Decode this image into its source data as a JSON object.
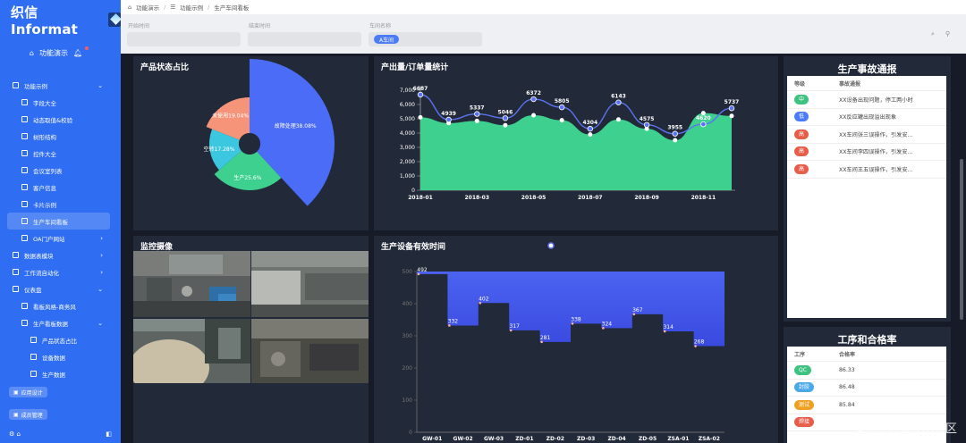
{
  "brand": {
    "name": "织信 Informat"
  },
  "home": {
    "label": "功能演示"
  },
  "sidebar": {
    "items": [
      {
        "label": "功能示例",
        "level": 1,
        "arrow": "⌄"
      },
      {
        "label": "字段大全",
        "level": 2
      },
      {
        "label": "动态取值&校验",
        "level": 2
      },
      {
        "label": "树形结构",
        "level": 2
      },
      {
        "label": "控件大全",
        "level": 2
      },
      {
        "label": "会议室列表",
        "level": 2
      },
      {
        "label": "客户信息",
        "level": 2
      },
      {
        "label": "卡片示例",
        "level": 2
      },
      {
        "label": "生产车间看板",
        "level": 2,
        "active": true
      },
      {
        "label": "OA门户网站",
        "level": 2,
        "arrow": "›"
      },
      {
        "label": "数据表模块",
        "level": 1,
        "arrow": "›"
      },
      {
        "label": "工作流自动化",
        "level": 1,
        "arrow": "›"
      },
      {
        "label": "仪表盘",
        "level": 1,
        "arrow": "⌄"
      },
      {
        "label": "看板风格-商务风",
        "level": 2
      },
      {
        "label": "生产看板数据",
        "level": 2,
        "arrow": "⌄"
      },
      {
        "label": "产品状态占比",
        "level": 3
      },
      {
        "label": "设备数据",
        "level": 3
      },
      {
        "label": "生产数据",
        "level": 3
      }
    ],
    "btn_design": "应用设计",
    "btn_members": "成员管理"
  },
  "breadcrumb": {
    "a": "功能演示",
    "b": "功能示例",
    "c": "生产车间看板"
  },
  "filters": {
    "start_label": "开始时间",
    "end_label": "结束时间",
    "workshop_label": "车间名称",
    "workshop_value": "A车间"
  },
  "panels": {
    "prod_title": "产品状态占比",
    "stats_title": "产出量/订单量统计",
    "cam_title": "监控摄像",
    "eff_title": "生产设备有效时间",
    "acc_title": "生产事故通报",
    "pass_title": "工序和合格率"
  },
  "accidents": {
    "headers": [
      "等级",
      "事故通报"
    ],
    "rows": [
      {
        "level": "中",
        "color": "#3ec27f",
        "text": "XX设备出现问题，停工两小时"
      },
      {
        "level": "低",
        "color": "#4b7bf5",
        "text": "XX反应罐出现溢出现象"
      },
      {
        "level": "高",
        "color": "#e85c4a",
        "text": "XX车间张三误操作，引发安..."
      },
      {
        "level": "高",
        "color": "#e85c4a",
        "text": "XX车间李四误操作，引发安..."
      },
      {
        "level": "高",
        "color": "#e85c4a",
        "text": "XX车间王五误操作，引发安..."
      }
    ]
  },
  "pass_rate": {
    "headers": [
      "工序",
      "合格率"
    ],
    "rows": [
      {
        "proc": "QC",
        "color": "#3ec27f",
        "rate": "86.33"
      },
      {
        "proc": "封胶",
        "color": "#4aa8e8",
        "rate": "86.48"
      },
      {
        "proc": "测试",
        "color": "#f0a020",
        "rate": "85.84"
      },
      {
        "proc": "焊接",
        "color": "#e85c4a",
        "rate": ""
      }
    ]
  },
  "watermark": "@稀土掘金技术社区",
  "chart_data": [
    {
      "type": "pie",
      "title": "产品状态占比",
      "labels": [
        "故障处理",
        "生产",
        "空转",
        "未使用"
      ],
      "values": [
        38.08,
        25.6,
        17.28,
        19.04
      ],
      "display": [
        "故障处理38.08%",
        "生产25.6%",
        "空转17.28%",
        "未使用19.04%"
      ],
      "colors": [
        "#4b6cf6",
        "#3ed08f",
        "#3cc7e0",
        "#f59479"
      ]
    },
    {
      "type": "area",
      "title": "产出量/订单量统计",
      "x": [
        "2018-01",
        "2018-02",
        "2018-03",
        "2018-04",
        "2018-05",
        "2018-06",
        "2018-07",
        "2018-08",
        "2018-09",
        "2018-10",
        "2018-11",
        "2018-12"
      ],
      "xticks": [
        "2018-01",
        "2018-03",
        "2018-05",
        "2018-07",
        "2018-09",
        "2018-11"
      ],
      "ylim": [
        0,
        7000
      ],
      "yticks": [
        0,
        1000,
        2000,
        3000,
        4000,
        5000,
        6000,
        7000
      ],
      "yticklabels": [
        "0",
        "1,000",
        "2,000",
        "3,000",
        "4,000",
        "5,000",
        "6,000",
        "7,000"
      ],
      "series": [
        {
          "type": "line",
          "color": "#5b73f0",
          "values": [
            6687,
            4939,
            5337,
            5046,
            6372,
            5805,
            4304,
            6143,
            4575,
            3955,
            4620,
            5737
          ],
          "labels": [
            "6687",
            "4939",
            "5337",
            "5046",
            "6372",
            "5805",
            "4304",
            "6143",
            "4575",
            "3955",
            "4620",
            "5737"
          ]
        },
        {
          "type": "area",
          "color": "#3ed08f",
          "values": [
            5100,
            4700,
            4850,
            4550,
            5250,
            4900,
            3900,
            4950,
            4300,
            3500,
            5400,
            5200
          ]
        }
      ]
    },
    {
      "type": "line",
      "title": "生产设备有效时间",
      "step": true,
      "categories": [
        "GW-01",
        "GW-02",
        "GW-03",
        "ZD-01",
        "ZD-02",
        "ZD-03",
        "ZD-04",
        "ZD-05",
        "ZSA-01",
        "ZSA-02"
      ],
      "values": [
        492,
        332,
        402,
        317,
        281,
        338,
        324,
        367,
        314,
        268
      ],
      "ylim": [
        0,
        500
      ],
      "yticks": [
        0,
        100,
        200,
        300,
        400,
        500
      ],
      "colors": [
        "#4b63f0",
        "#3a4ae0"
      ]
    }
  ]
}
